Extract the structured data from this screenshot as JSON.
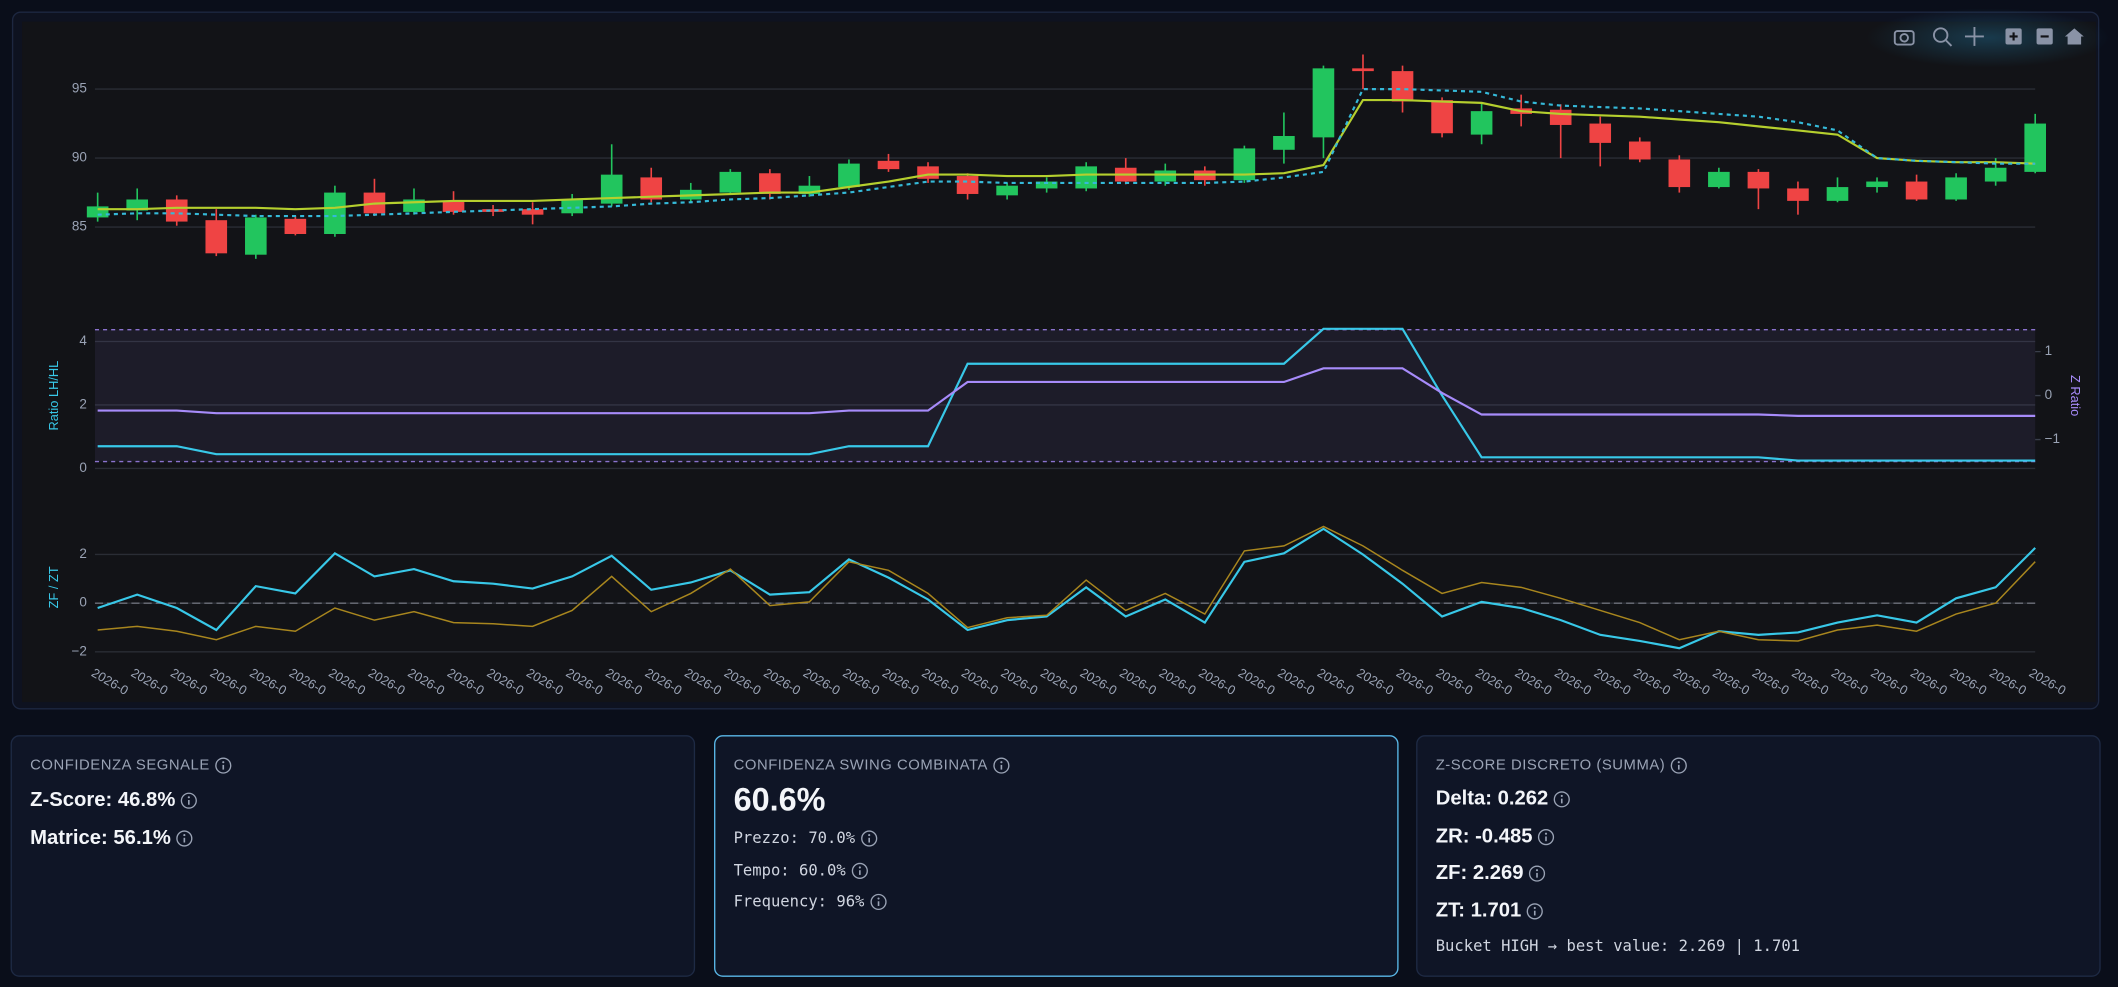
{
  "chart_data": [
    {
      "type": "candlestick",
      "up_color": "#22c55e",
      "down_color": "#ef4444",
      "grid": true,
      "ylim": [
        81.4,
        99.3
      ],
      "yticks": [
        85,
        90,
        95
      ],
      "open": [
        85.7,
        86.2,
        87.0,
        85.5,
        83.0,
        85.6,
        84.5,
        87.5,
        86.1,
        86.9,
        86.3,
        86.3,
        86.0,
        86.7,
        88.6,
        87.0,
        87.5,
        88.9,
        87.4,
        87.9,
        89.8,
        89.4,
        88.7,
        87.3,
        87.8,
        87.8,
        89.3,
        88.3,
        89.1,
        88.4,
        90.6,
        91.5,
        96.5,
        96.3,
        94.2,
        91.7,
        93.6,
        93.5,
        92.5,
        91.2,
        89.9,
        87.9,
        89.0,
        87.8,
        86.9,
        87.9,
        88.3,
        87.0,
        88.3,
        89.0
      ],
      "high": [
        87.5,
        87.8,
        87.3,
        86.3,
        85.9,
        85.8,
        88.0,
        88.5,
        87.8,
        87.6,
        86.6,
        86.8,
        87.4,
        91.0,
        89.3,
        88.2,
        89.2,
        89.2,
        88.7,
        89.9,
        90.3,
        89.7,
        88.9,
        88.2,
        88.6,
        89.7,
        90.0,
        89.6,
        89.4,
        90.9,
        93.3,
        96.7,
        97.5,
        96.7,
        94.4,
        94.0,
        94.6,
        93.9,
        93.0,
        91.5,
        90.2,
        89.3,
        89.2,
        88.3,
        88.6,
        88.6,
        88.8,
        88.9,
        90.0,
        93.2
      ],
      "low": [
        85.4,
        85.5,
        85.1,
        82.9,
        82.7,
        84.4,
        84.3,
        85.8,
        85.9,
        85.9,
        85.8,
        85.2,
        85.8,
        86.5,
        86.8,
        86.8,
        87.4,
        87.0,
        87.2,
        87.7,
        89.0,
        88.2,
        87.0,
        87.0,
        87.5,
        87.6,
        88.1,
        88.0,
        88.0,
        88.2,
        89.6,
        90.0,
        95.0,
        93.3,
        91.5,
        91.0,
        92.3,
        90.0,
        89.4,
        89.7,
        87.5,
        87.8,
        86.3,
        85.9,
        86.8,
        87.5,
        86.9,
        86.9,
        88.0,
        88.9
      ],
      "close": [
        86.5,
        87.0,
        85.4,
        83.1,
        85.7,
        84.5,
        87.5,
        86.0,
        87.0,
        86.1,
        86.1,
        85.9,
        87.0,
        88.8,
        87.0,
        87.7,
        89.0,
        87.4,
        88.0,
        89.6,
        89.2,
        88.5,
        87.4,
        88.0,
        88.3,
        89.4,
        88.3,
        89.1,
        88.4,
        90.7,
        91.6,
        96.5,
        96.3,
        94.1,
        91.8,
        93.4,
        93.2,
        92.4,
        91.1,
        89.9,
        87.9,
        89.0,
        87.8,
        86.9,
        87.9,
        88.3,
        87.0,
        88.6,
        89.3,
        92.5
      ],
      "series": [
        {
          "color": "#b5cf2e",
          "values": [
            86.3,
            86.3,
            86.4,
            86.4,
            86.4,
            86.3,
            86.4,
            86.7,
            86.8,
            86.9,
            86.9,
            86.9,
            87.0,
            87.1,
            87.2,
            87.3,
            87.4,
            87.5,
            87.5,
            87.9,
            88.3,
            88.8,
            88.8,
            88.7,
            88.7,
            88.8,
            88.8,
            88.8,
            88.8,
            88.8,
            88.9,
            89.5,
            94.2,
            94.2,
            94.1,
            94.0,
            93.4,
            93.2,
            93.1,
            93.0,
            92.8,
            92.6,
            92.3,
            92.0,
            91.7,
            90.0,
            89.8,
            89.7,
            89.7,
            89.6
          ]
        },
        {
          "color": "#35b9d8",
          "dashed": true,
          "values": [
            85.9,
            86.0,
            86.0,
            85.9,
            85.8,
            85.8,
            85.8,
            85.9,
            86.0,
            86.1,
            86.2,
            86.3,
            86.4,
            86.5,
            86.7,
            86.8,
            87.0,
            87.1,
            87.3,
            87.5,
            87.9,
            88.3,
            88.3,
            88.2,
            88.2,
            88.2,
            88.2,
            88.2,
            88.2,
            88.3,
            88.6,
            89.0,
            95.0,
            95.0,
            94.9,
            94.8,
            94.1,
            93.8,
            93.7,
            93.6,
            93.4,
            93.2,
            93.0,
            92.6,
            92.0,
            90.0,
            89.8,
            89.7,
            89.6,
            89.6
          ]
        }
      ]
    },
    {
      "type": "line",
      "ylabel": "Ratio LH/HL",
      "y2label": "Z Ratio",
      "grid": true,
      "ylim": [
        -0.13,
        4.72
      ],
      "yticks": [
        0,
        2,
        4
      ],
      "y2lim": [
        -1.75,
        1.75
      ],
      "y2ticks": [
        1,
        0,
        {
          "value": -1,
          "label": "−1"
        }
      ],
      "y2_hlines": [
        1.5,
        -1.5
      ],
      "band_color": "#a78bfa",
      "series": [
        {
          "color": "#38c8e8",
          "values": [
            0.7,
            0.7,
            0.7,
            0.45,
            0.45,
            0.45,
            0.45,
            0.45,
            0.45,
            0.45,
            0.45,
            0.45,
            0.45,
            0.45,
            0.45,
            0.45,
            0.45,
            0.45,
            0.45,
            0.7,
            0.7,
            0.7,
            3.3,
            3.3,
            3.3,
            3.3,
            3.3,
            3.3,
            3.3,
            3.3,
            3.3,
            4.4,
            4.4,
            4.4,
            2.3,
            0.35,
            0.35,
            0.35,
            0.35,
            0.35,
            0.35,
            0.35,
            0.35,
            0.25,
            0.25,
            0.25,
            0.25,
            0.25,
            0.25,
            0.25
          ]
        },
        {
          "color": "#a78bfa",
          "axis": "y2",
          "values": [
            -0.34,
            -0.34,
            -0.34,
            -0.4,
            -0.4,
            -0.4,
            -0.4,
            -0.4,
            -0.4,
            -0.4,
            -0.4,
            -0.4,
            -0.4,
            -0.4,
            -0.4,
            -0.4,
            -0.4,
            -0.4,
            -0.4,
            -0.34,
            -0.34,
            -0.34,
            0.31,
            0.31,
            0.31,
            0.31,
            0.31,
            0.31,
            0.31,
            0.31,
            0.31,
            0.62,
            0.62,
            0.62,
            0.06,
            -0.43,
            -0.43,
            -0.43,
            -0.43,
            -0.43,
            -0.43,
            -0.43,
            -0.43,
            -0.46,
            -0.46,
            -0.46,
            -0.46,
            -0.46,
            -0.46,
            -0.46
          ]
        }
      ]
    },
    {
      "type": "line",
      "ylabel": "ZF / ZT",
      "grid": true,
      "ylim": [
        -2.4,
        3.7
      ],
      "yticks": [
        {
          "value": -2,
          "label": "−2"
        },
        0,
        2
      ],
      "hlines": [
        0
      ],
      "categories": [
        "2026-0",
        "2026-0",
        "2026-0",
        "2026-0",
        "2026-0",
        "2026-0",
        "2026-0",
        "2026-0",
        "2026-0",
        "2026-0",
        "2026-0",
        "2026-0",
        "2026-0",
        "2026-0",
        "2026-0",
        "2026-0",
        "2026-0",
        "2026-0",
        "2026-0",
        "2026-0",
        "2026-0",
        "2026-0",
        "2026-0",
        "2026-0",
        "2026-0",
        "2026-0",
        "2026-0",
        "2026-0",
        "2026-0",
        "2026-0",
        "2026-0",
        "2026-0",
        "2026-0",
        "2026-0",
        "2026-0",
        "2026-0",
        "2026-0",
        "2026-0",
        "2026-0",
        "2026-0",
        "2026-0",
        "2026-0",
        "2026-0",
        "2026-0",
        "2026-0",
        "2026-0",
        "2026-0",
        "2026-0",
        "2026-0",
        "2026-0"
      ],
      "series": [
        {
          "color": "#38c8e8",
          "values": [
            -0.2,
            0.35,
            -0.2,
            -1.1,
            0.7,
            0.4,
            2.05,
            1.1,
            1.4,
            0.9,
            0.8,
            0.6,
            1.1,
            1.95,
            0.55,
            0.85,
            1.35,
            0.35,
            0.45,
            1.8,
            1.05,
            0.15,
            -1.1,
            -0.7,
            -0.55,
            0.65,
            -0.55,
            0.15,
            -0.8,
            1.7,
            2.05,
            3.05,
            2.0,
            0.8,
            -0.55,
            0.05,
            -0.2,
            -0.7,
            -1.3,
            -1.55,
            -1.85,
            -1.15,
            -1.3,
            -1.2,
            -0.8,
            -0.5,
            -0.8,
            0.2,
            0.65,
            2.269
          ]
        },
        {
          "color": "#a8861e",
          "values": [
            -1.1,
            -0.95,
            -1.15,
            -1.5,
            -0.95,
            -1.15,
            -0.2,
            -0.7,
            -0.35,
            -0.8,
            -0.85,
            -0.95,
            -0.3,
            1.1,
            -0.35,
            0.4,
            1.4,
            -0.1,
            0.05,
            1.7,
            1.35,
            0.4,
            -1.0,
            -0.6,
            -0.5,
            0.95,
            -0.3,
            0.4,
            -0.45,
            2.15,
            2.35,
            3.15,
            2.35,
            1.35,
            0.4,
            0.85,
            0.65,
            0.2,
            -0.3,
            -0.8,
            -1.5,
            -1.15,
            -1.5,
            -1.55,
            -1.1,
            -0.9,
            -1.15,
            -0.45,
            0.0,
            1.701
          ]
        }
      ]
    }
  ],
  "cards": [
    {
      "title": "CONFIDENZA SEGNALE",
      "lines": [
        "Z-Score: 46.8%",
        "Matrice: 56.1%"
      ]
    },
    {
      "title": "CONFIDENZA SWING COMBINATA",
      "headline": "60.6%",
      "lines": [
        "Prezzo: 70.0%",
        "Tempo: 60.0%",
        "Frequency: 96%"
      ]
    },
    {
      "title": "Z-SCORE DISCRETO (SUMMA)",
      "lines": [
        {
          "text": "Delta: 0.262",
          "color": "#22c55e"
        },
        {
          "text": "ZR: -0.485",
          "color": "#ef4444"
        },
        {
          "text": "ZF: 2.269",
          "color": "#22c55e"
        },
        {
          "text": "ZT: 1.701",
          "color": "#22c55e"
        }
      ],
      "note": "Bucket HIGH → best value: 2.269 | 1.701"
    }
  ]
}
